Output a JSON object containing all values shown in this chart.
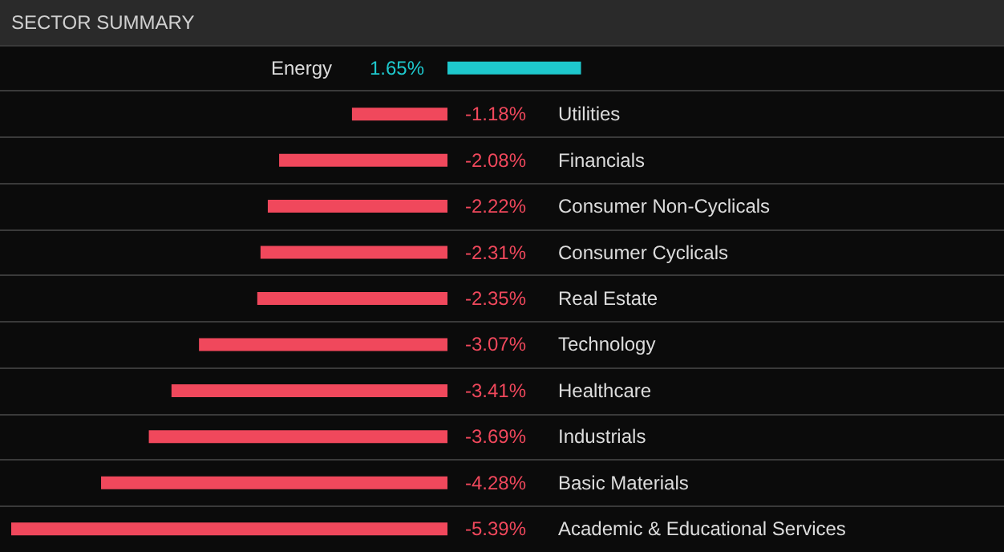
{
  "chart_data": {
    "type": "bar",
    "orientation": "horizontal",
    "title": "SECTOR SUMMARY",
    "grid": "y",
    "tick_labels": false,
    "categories": [
      "Energy",
      "Utilities",
      "Financials",
      "Consumer Non-Cyclicals",
      "Consumer Cyclicals",
      "Real Estate",
      "Technology",
      "Healthcare",
      "Industrials",
      "Basic Materials",
      "Academic & Educational Services"
    ],
    "values": [
      1.65,
      -1.18,
      -2.08,
      -2.22,
      -2.31,
      -2.35,
      -3.07,
      -3.41,
      -3.69,
      -4.28,
      -5.39
    ],
    "value_labels": [
      "1.65%",
      "-1.18%",
      "-2.08%",
      "-2.22%",
      "-2.31%",
      "-2.35%",
      "-3.07%",
      "-3.41%",
      "-3.69%",
      "-4.28%",
      "-5.39%"
    ],
    "colors": [
      "#1ec8cd",
      "#f0485c",
      "#f0485c",
      "#f0485c",
      "#f0485c",
      "#f0485c",
      "#f0485c",
      "#f0485c",
      "#f0485c",
      "#f0485c",
      "#f0485c"
    ]
  }
}
